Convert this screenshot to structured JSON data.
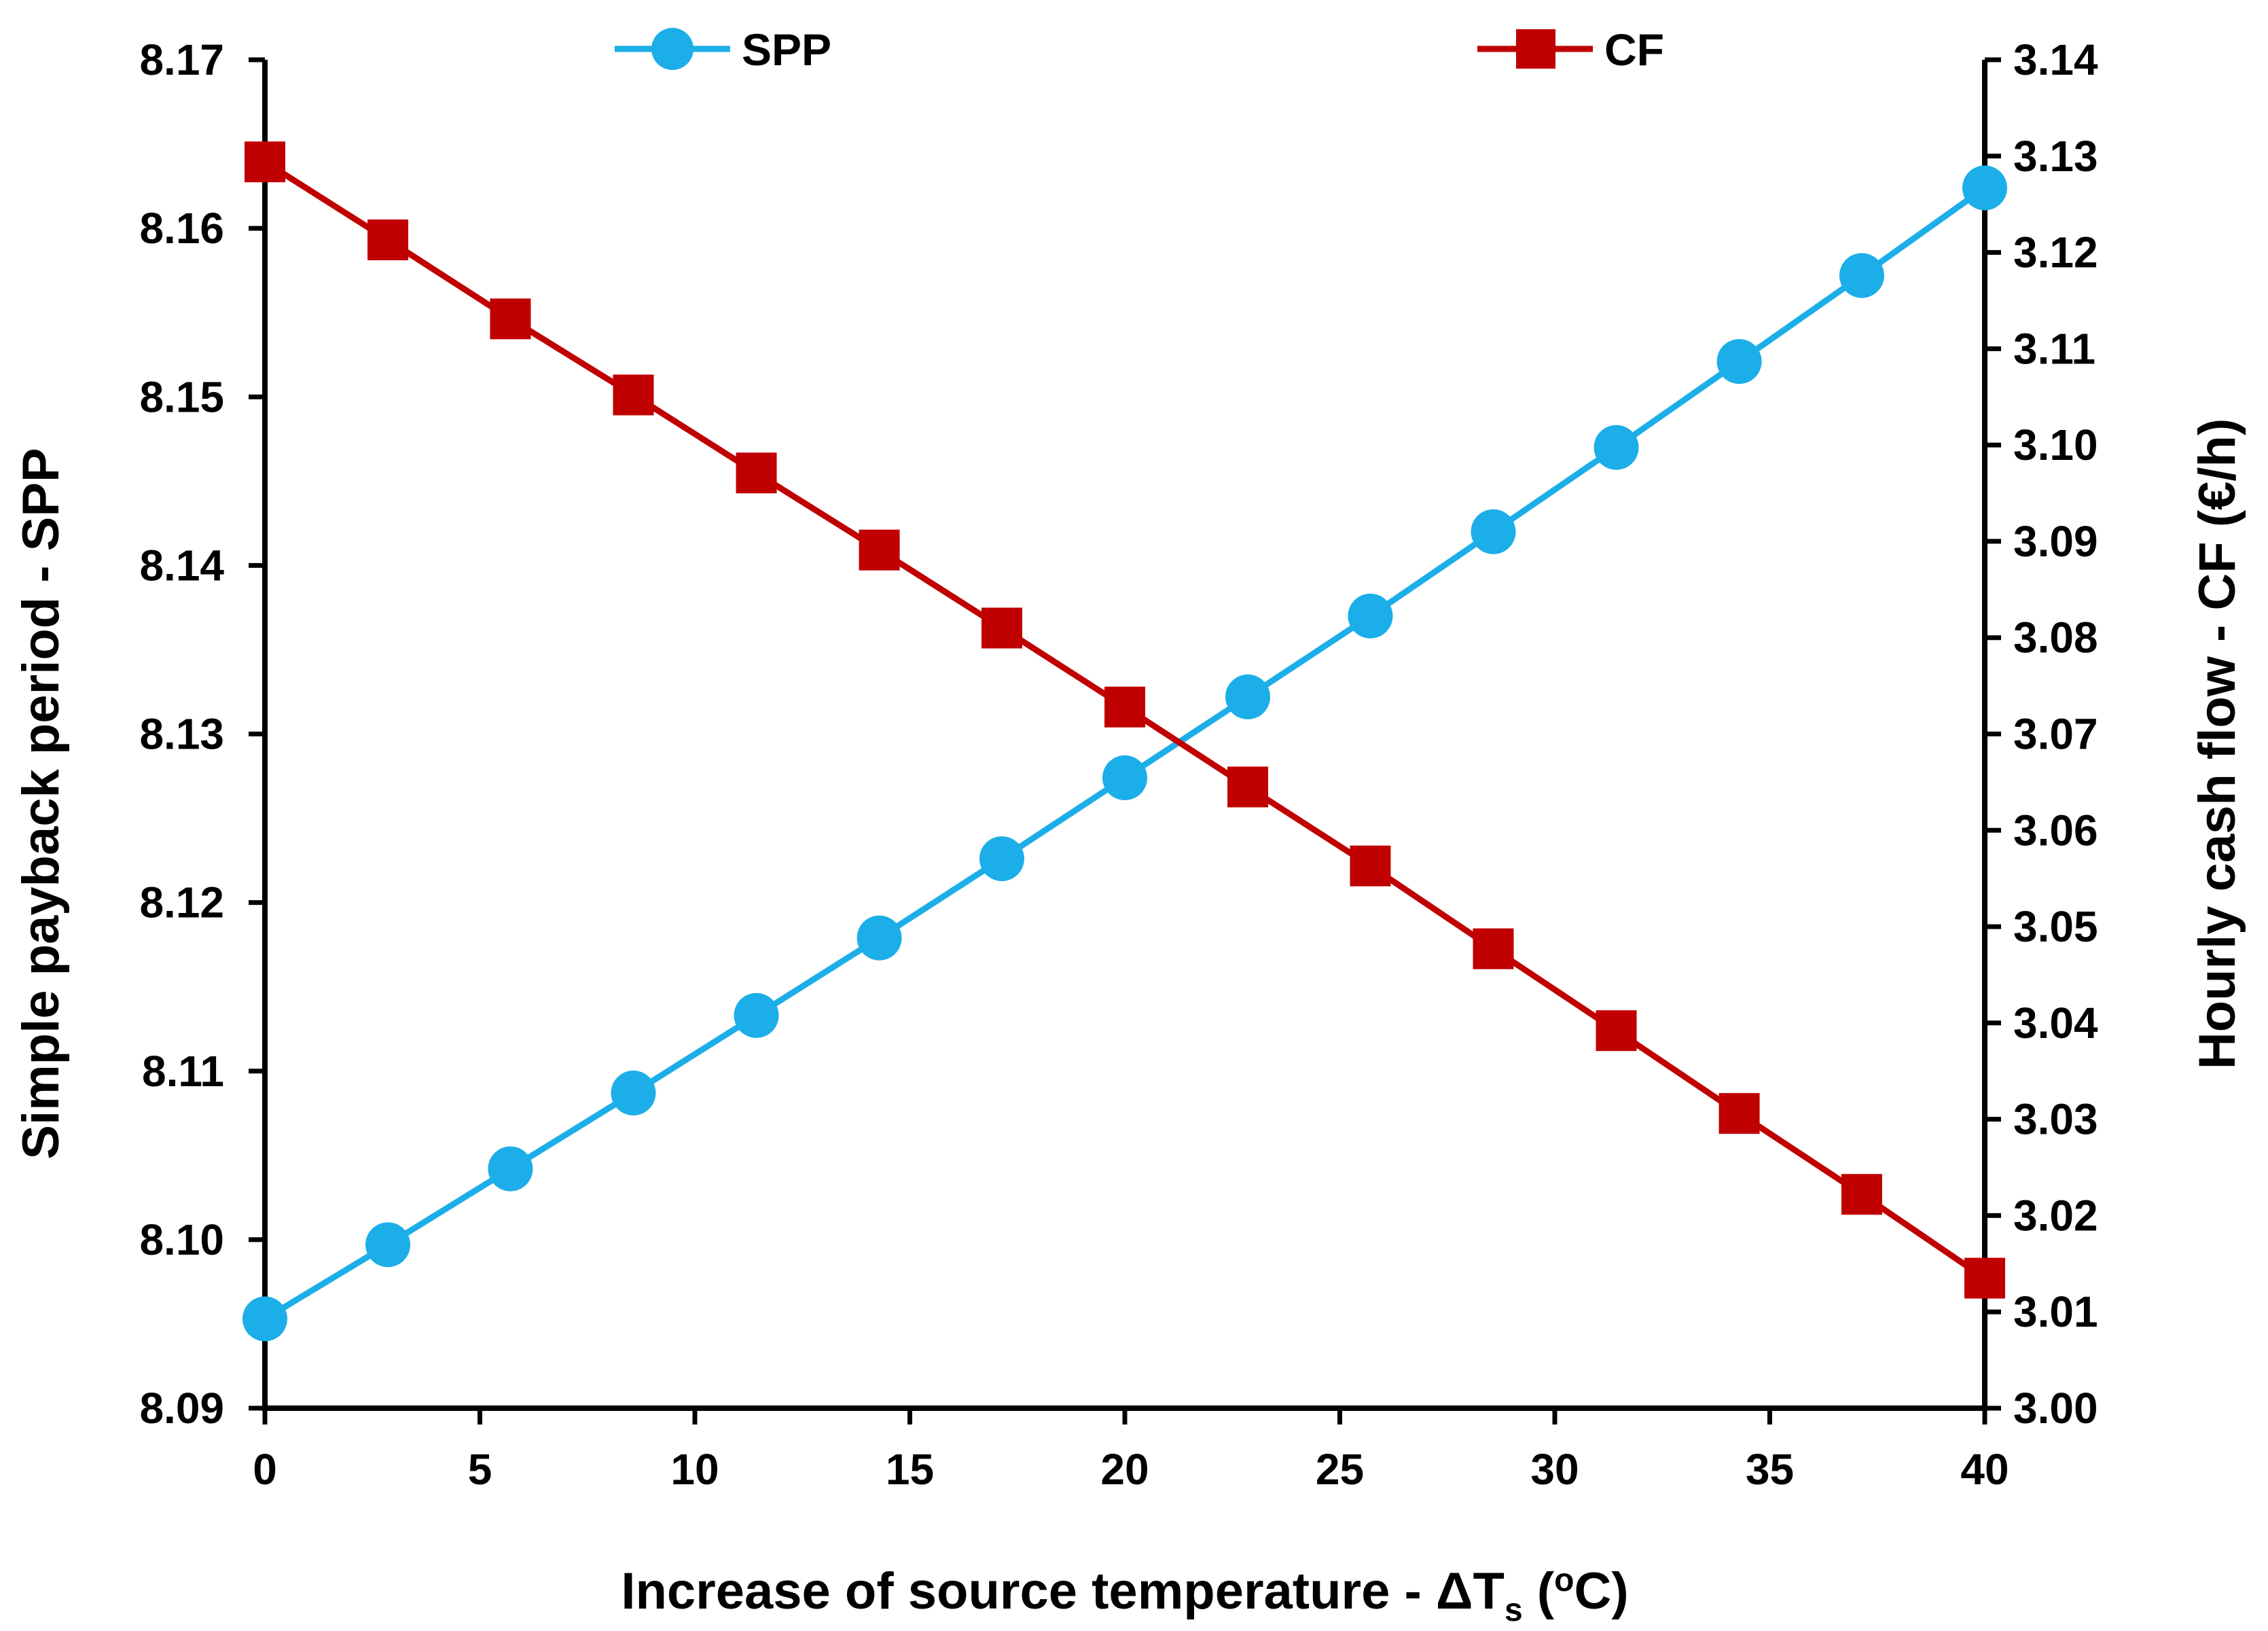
{
  "chart_data": {
    "type": "line",
    "title": "",
    "x": [
      0,
      2.86,
      5.71,
      8.57,
      11.43,
      14.29,
      17.14,
      20,
      22.86,
      25.71,
      28.57,
      31.43,
      34.29,
      37.14,
      40
    ],
    "xlim": [
      0,
      40
    ],
    "xticks": [
      "0",
      "5",
      "10",
      "15",
      "20",
      "25",
      "30",
      "35",
      "40"
    ],
    "xlabel": {
      "main": "Increase of source temperature - ΔT",
      "subscript": "s",
      "unit_open": " (",
      "unit_superscript": "o",
      "unit_close": "C)"
    },
    "ylabel_left": "Simple payback period - SPP",
    "ylabel_right": "Hourly cash flow - CF (€/h)",
    "ylim_left": [
      8.09,
      8.17
    ],
    "ylim_right": [
      3.0,
      3.14
    ],
    "yticks_left": [
      "8.09",
      "8.10",
      "8.11",
      "8.12",
      "8.13",
      "8.14",
      "8.15",
      "8.16",
      "8.17"
    ],
    "yticks_right": [
      "3.00",
      "3.01",
      "3.02",
      "3.03",
      "3.04",
      "3.05",
      "3.06",
      "3.07",
      "3.08",
      "3.09",
      "3.10",
      "3.11",
      "3.12",
      "3.13",
      "3.14"
    ],
    "series": [
      {
        "name": "SPP",
        "axis": "left",
        "marker": "circle",
        "color": "#1CAEE8",
        "values": [
          8.0953,
          8.0997,
          8.1042,
          8.1087,
          8.1133,
          8.1179,
          8.1226,
          8.1274,
          8.1322,
          8.137,
          8.142,
          8.147,
          8.1521,
          8.1572,
          8.1624
        ]
      },
      {
        "name": "CF",
        "axis": "right",
        "marker": "square",
        "color": "#C00000",
        "values": [
          3.1294,
          3.1213,
          3.1131,
          3.1052,
          3.0971,
          3.0891,
          3.081,
          3.0728,
          3.0645,
          3.0563,
          3.0477,
          3.0392,
          3.0306,
          3.0222,
          3.0135
        ]
      }
    ],
    "legend_position": "top"
  }
}
